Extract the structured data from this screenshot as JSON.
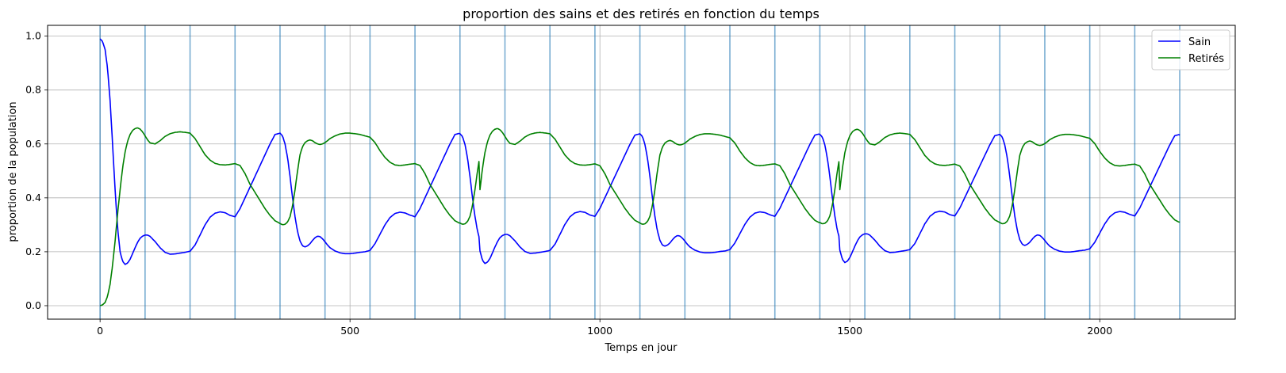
{
  "chart_data": {
    "type": "line",
    "title": "proportion des sains et des retirés en fonction du temps",
    "xlabel": "Temps en jour",
    "ylabel": "proportion de la population",
    "xlim": [
      -105,
      2271
    ],
    "ylim": [
      -0.05,
      1.04
    ],
    "xticks": [
      0,
      500,
      1000,
      1500,
      2000
    ],
    "yticks": [
      0.0,
      0.2,
      0.4,
      0.6,
      0.8,
      1.0
    ],
    "ytick_labels": [
      "0.0",
      "0.2",
      "0.4",
      "0.6",
      "0.8",
      "1.0"
    ],
    "grid": true,
    "legend_position": "top-right",
    "vertical_markers": {
      "color": "#1f77b4",
      "x": [
        0,
        90,
        180,
        270,
        360,
        450,
        540,
        630,
        720,
        810,
        900,
        990,
        1080,
        1170,
        1260,
        1350,
        1440,
        1530,
        1620,
        1710,
        1800,
        1890,
        1980,
        2070,
        2160
      ]
    },
    "series": [
      {
        "name": "Sain",
        "color": "#0000ff",
        "x": [
          0,
          5,
          10,
          15,
          20,
          25,
          30,
          35,
          40,
          45,
          50,
          55,
          60,
          65,
          70,
          75,
          80,
          85,
          90,
          95,
          100,
          110,
          120,
          130,
          140,
          150,
          160,
          170,
          180,
          190,
          200,
          210,
          220,
          230,
          240,
          250,
          260,
          270,
          280,
          290,
          300,
          310,
          320,
          330,
          340,
          350,
          360,
          365,
          370,
          375,
          380,
          385,
          390,
          395,
          400,
          405,
          410,
          415,
          420,
          425,
          430,
          435,
          440,
          445,
          450,
          455,
          460,
          470,
          480,
          490,
          500,
          510,
          520,
          530,
          540,
          550,
          560,
          570,
          580,
          590,
          600,
          610,
          620,
          630
        ],
        "values": [
          0.99,
          0.98,
          0.95,
          0.88,
          0.76,
          0.6,
          0.43,
          0.29,
          0.2,
          0.165,
          0.153,
          0.158,
          0.172,
          0.193,
          0.215,
          0.235,
          0.25,
          0.258,
          0.262,
          0.262,
          0.257,
          0.238,
          0.215,
          0.198,
          0.191,
          0.192,
          0.195,
          0.198,
          0.202,
          0.225,
          0.262,
          0.3,
          0.328,
          0.343,
          0.348,
          0.345,
          0.335,
          0.33,
          0.36,
          0.4,
          0.44,
          0.48,
          0.52,
          0.56,
          0.6,
          0.635,
          0.64,
          0.63,
          0.6,
          0.55,
          0.48,
          0.4,
          0.33,
          0.275,
          0.24,
          0.222,
          0.218,
          0.222,
          0.23,
          0.242,
          0.252,
          0.258,
          0.256,
          0.248,
          0.237,
          0.225,
          0.215,
          0.203,
          0.196,
          0.193,
          0.193,
          0.195,
          0.198,
          0.2,
          0.205,
          0.23,
          0.265,
          0.3,
          0.327,
          0.342,
          0.347,
          0.344,
          0.336,
          0.33
        ]
      },
      {
        "name": "Retirés",
        "color": "#008000",
        "x": [
          0,
          5,
          10,
          15,
          20,
          25,
          30,
          35,
          40,
          45,
          50,
          55,
          60,
          65,
          70,
          75,
          80,
          85,
          90,
          95,
          100,
          110,
          120,
          130,
          140,
          150,
          160,
          170,
          180,
          190,
          200,
          210,
          220,
          230,
          240,
          250,
          260,
          270,
          280,
          290,
          300,
          310,
          320,
          330,
          340,
          350,
          360,
          365,
          370,
          375,
          380,
          385,
          390,
          395,
          400,
          405,
          410,
          415,
          420,
          425,
          430,
          435,
          440,
          445,
          450,
          455,
          460,
          470,
          480,
          490,
          500,
          510,
          520,
          530,
          540,
          550,
          560,
          570,
          580,
          590,
          600,
          610,
          620,
          630
        ],
        "values": [
          0.0,
          0.003,
          0.012,
          0.035,
          0.08,
          0.15,
          0.24,
          0.34,
          0.43,
          0.51,
          0.57,
          0.61,
          0.635,
          0.65,
          0.657,
          0.66,
          0.655,
          0.645,
          0.63,
          0.615,
          0.604,
          0.6,
          0.612,
          0.628,
          0.638,
          0.643,
          0.645,
          0.643,
          0.64,
          0.62,
          0.59,
          0.56,
          0.54,
          0.528,
          0.523,
          0.522,
          0.524,
          0.527,
          0.52,
          0.49,
          0.45,
          0.42,
          0.39,
          0.36,
          0.335,
          0.315,
          0.305,
          0.3,
          0.302,
          0.31,
          0.33,
          0.37,
          0.43,
          0.5,
          0.56,
          0.59,
          0.605,
          0.612,
          0.615,
          0.612,
          0.605,
          0.6,
          0.598,
          0.6,
          0.605,
          0.612,
          0.62,
          0.63,
          0.637,
          0.64,
          0.64,
          0.638,
          0.635,
          0.63,
          0.625,
          0.605,
          0.575,
          0.55,
          0.532,
          0.522,
          0.52,
          0.522,
          0.525,
          0.527
        ]
      }
    ],
    "series_period_days": 720,
    "series_decay_per_period": {
      "Sain_peak": 0.002,
      "Retirés_peak": 0.005,
      "Retirés_trough": 0.005
    },
    "series_end_x": 2160
  }
}
